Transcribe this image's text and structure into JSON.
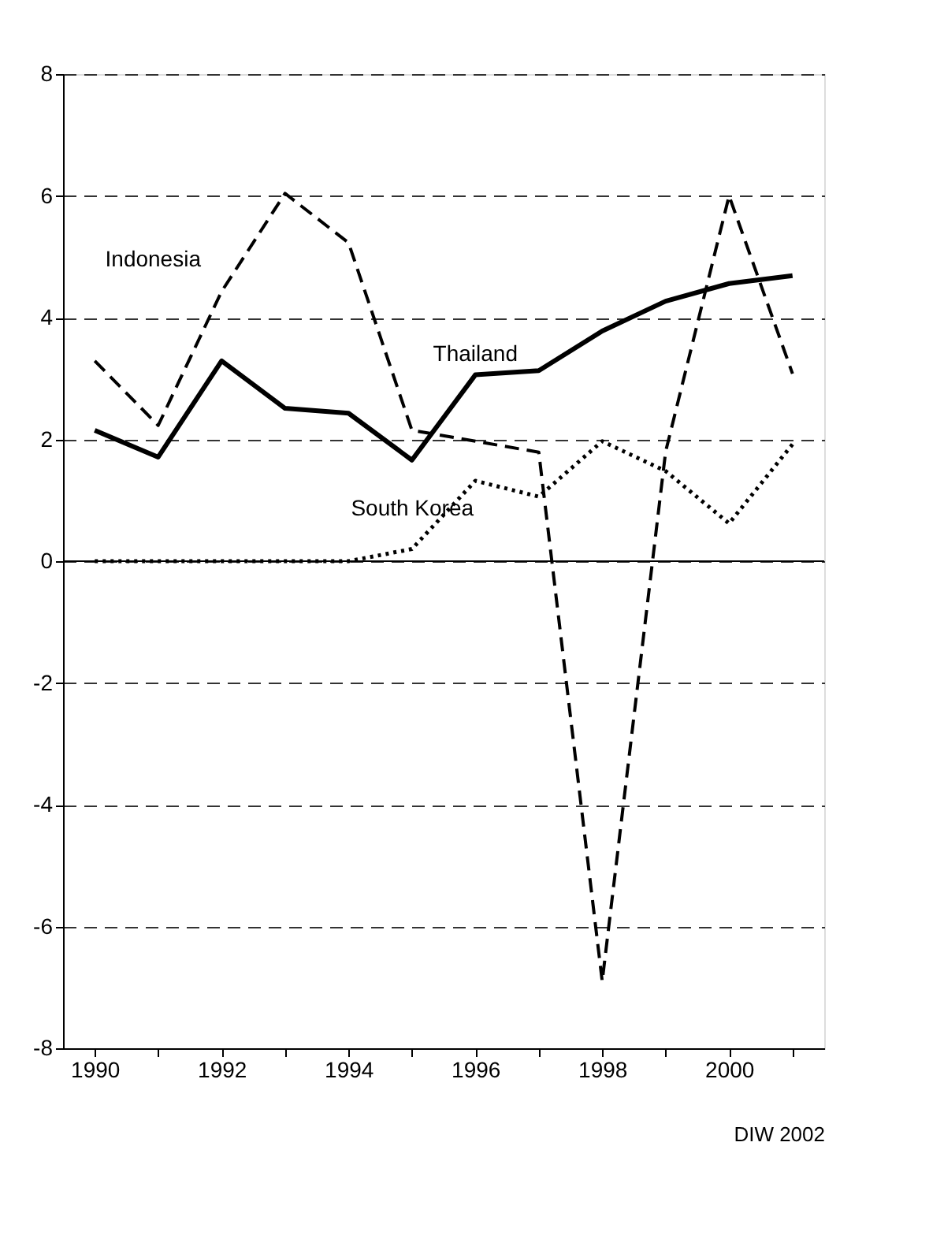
{
  "chart_data": {
    "type": "line",
    "x": [
      1990,
      1991,
      1992,
      1993,
      1994,
      1995,
      1996,
      1997,
      1998,
      1999,
      2000,
      2001
    ],
    "series": [
      {
        "name": "Indonesia",
        "color": "#000000",
        "line_style": "dashed",
        "values": [
          3.29,
          2.23,
          4.43,
          6.04,
          5.23,
          2.15,
          1.97,
          1.79,
          -6.9,
          1.8,
          6.0,
          3.08
        ]
      },
      {
        "name": "Thailand",
        "color": "#000000",
        "line_style": "solid",
        "values": [
          2.15,
          1.71,
          3.29,
          2.51,
          2.43,
          1.66,
          3.06,
          3.13,
          3.78,
          4.27,
          4.56,
          4.69
        ]
      },
      {
        "name": "South Korea",
        "color": "#000000",
        "line_style": "dotted",
        "values": [
          0,
          0,
          0,
          0,
          0,
          0.2,
          1.32,
          1.06,
          1.97,
          1.48,
          0.62,
          1.92
        ]
      }
    ],
    "xlim": [
      1989.5,
      2001.5
    ],
    "xticks": [
      1990,
      {
        "value": 1991,
        "label": null
      },
      1992,
      {
        "value": 1993,
        "label": null
      },
      1994,
      {
        "value": 1995,
        "label": null
      },
      1996,
      {
        "value": 1997,
        "label": null
      },
      1998,
      {
        "value": 1999,
        "label": null
      },
      2000,
      {
        "value": 2001,
        "label": null
      }
    ],
    "ylim": [
      -8,
      8
    ],
    "yticks": [
      -8,
      -6,
      -4,
      -2,
      0,
      2,
      4,
      6,
      8
    ],
    "grid": "y",
    "ref_lines": [
      {
        "axis": "y",
        "value": 0,
        "color": "#000000",
        "line_style": "solid"
      }
    ],
    "marker": "none",
    "annotations": [
      "DIW 2002"
    ]
  }
}
